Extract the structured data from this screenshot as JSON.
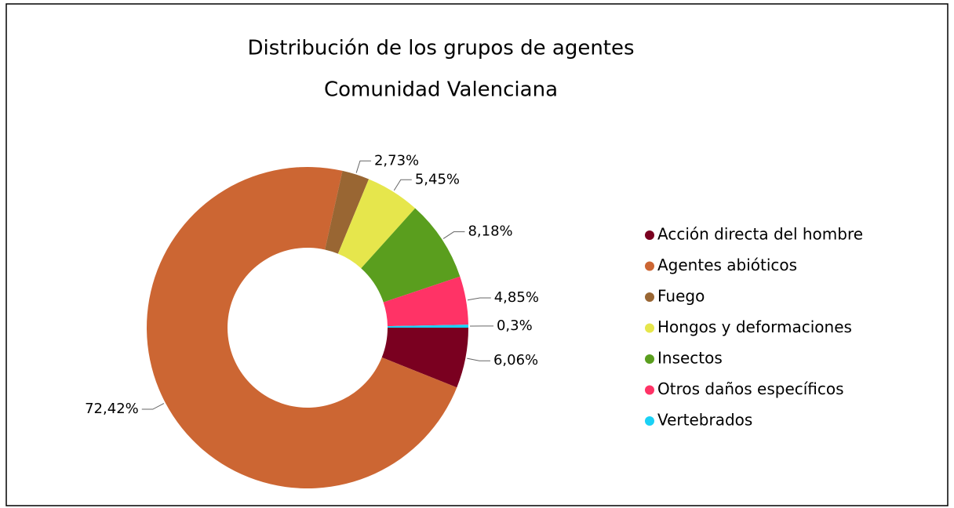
{
  "chart_data": {
    "type": "donut",
    "title": "Distribución de los grupos de agentes",
    "subtitle": "Comunidad Valenciana",
    "categories": [
      "Acción directa del hombre",
      "Agentes abióticos",
      "Fuego",
      "Hongos y deformaciones",
      "Insectos",
      "Otros daños específicos",
      "Vertebrados"
    ],
    "values": [
      6.06,
      72.42,
      2.73,
      5.45,
      8.18,
      4.85,
      0.3
    ],
    "value_labels": [
      "6,06%",
      "72,42%",
      "2,73%",
      "5,45%",
      "8,18%",
      "4,85%",
      "0,3%"
    ],
    "colors": [
      "#7a0020",
      "#cc6633",
      "#996633",
      "#e6e64c",
      "#5a9e1e",
      "#ff3366",
      "#1ad1f5"
    ],
    "legend": "right"
  }
}
